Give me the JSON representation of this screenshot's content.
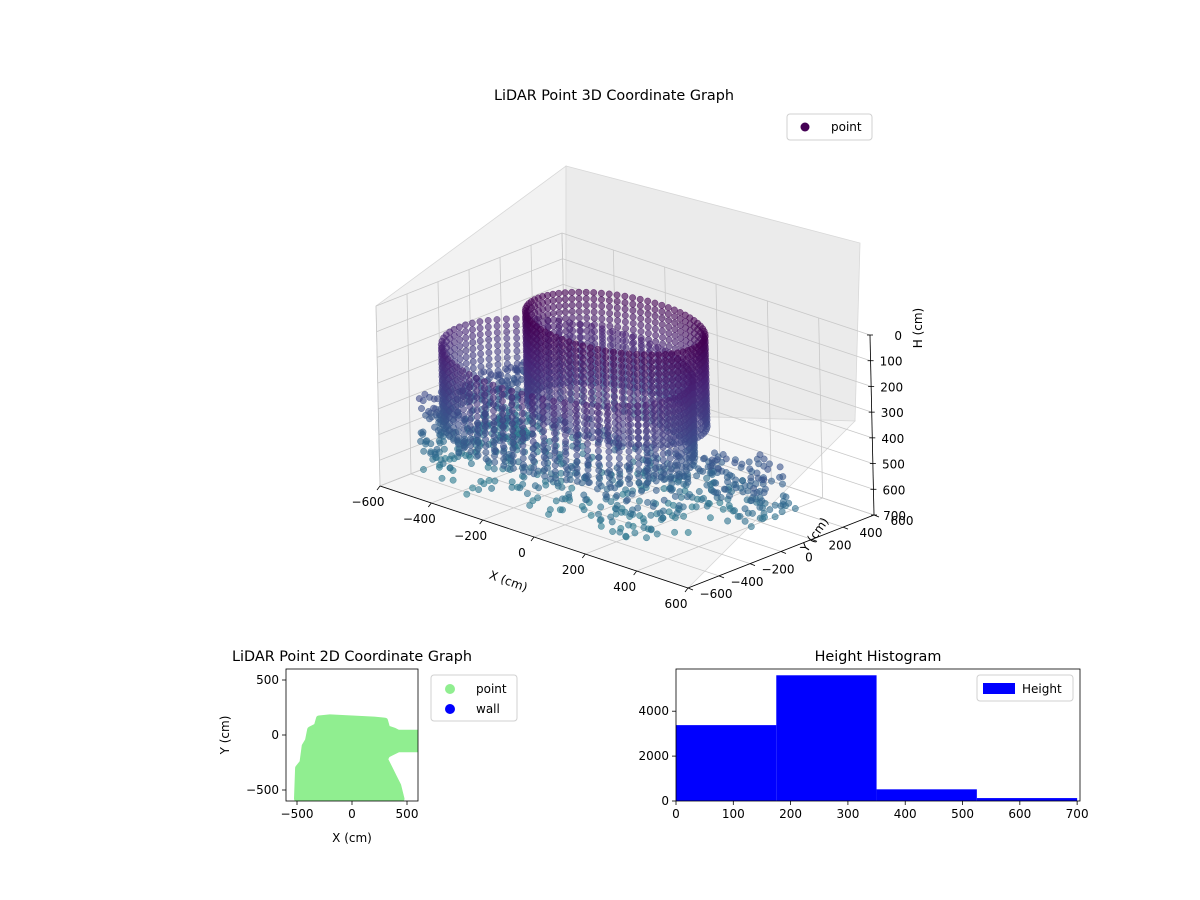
{
  "chart_data": [
    {
      "type": "scatter",
      "projection": "3d",
      "title": "LiDAR Point 3D Coordinate Graph",
      "xlabel": "X (cm)",
      "ylabel": "Y (cm)",
      "zlabel": "H (cm)",
      "xlim": [
        -600,
        600
      ],
      "ylim": [
        -600,
        600
      ],
      "zlim": [
        0,
        700
      ],
      "z_inverted": true,
      "xticks": [
        -600,
        -400,
        -200,
        0,
        200,
        400,
        600
      ],
      "yticks": [
        -600,
        -400,
        -200,
        0,
        200,
        400,
        600
      ],
      "zticks": [
        0,
        100,
        200,
        300,
        400,
        500,
        600,
        700
      ],
      "xtick_labels": [
        "−600",
        "−400",
        "−200",
        "0",
        "200",
        "400",
        "600"
      ],
      "ytick_labels": [
        "−600",
        "−400",
        "−200",
        "0",
        "200",
        "400",
        "600"
      ],
      "ztick_labels": [
        "0",
        "100",
        "200",
        "300",
        "400",
        "500",
        "600",
        "700"
      ],
      "grid": true,
      "colormap": "viridis",
      "legend": {
        "placement": "top-right",
        "entries": [
          {
            "label": "point",
            "color": "#440154"
          }
        ]
      },
      "series": [
        {
          "name": "point",
          "structures": [
            {
              "kind": "ring",
              "center": [
                0,
                -50
              ],
              "radius": 300,
              "z": [
                0,
                350
              ]
            },
            {
              "kind": "ring",
              "center": [
                -100,
                -200
              ],
              "radius": 420,
              "z": [
                150,
                450
              ]
            },
            {
              "kind": "wall",
              "x": [
                -520,
                -460
              ],
              "y": [
                -500,
                200
              ],
              "z": [
                350,
                650
              ]
            },
            {
              "kind": "corridor",
              "x": [
                250,
                600
              ],
              "y": [
                -150,
                150
              ],
              "z": [
                400,
                600
              ]
            },
            {
              "kind": "floor",
              "x": [
                -500,
                400
              ],
              "y": [
                -550,
                150
              ],
              "z": [
                450,
                650
              ]
            }
          ],
          "approx_point_count": 9700
        }
      ]
    },
    {
      "type": "scatter",
      "title": "LiDAR Point 2D Coordinate Graph",
      "xlabel": "X (cm)",
      "ylabel": "Y (cm)",
      "xlim": [
        -600,
        600
      ],
      "ylim": [
        -600,
        600
      ],
      "xticks": [
        -500,
        0,
        500
      ],
      "yticks": [
        -500,
        0,
        500
      ],
      "xtick_labels": [
        "−500",
        "0",
        "500"
      ],
      "ytick_labels": [
        "−500",
        "0",
        "500"
      ],
      "grid": false,
      "legend": {
        "placement": "outside-right",
        "entries": [
          {
            "label": "point",
            "color": "#90ee90"
          },
          {
            "label": "wall",
            "color": "#0000ff"
          }
        ]
      },
      "series": [
        {
          "name": "point",
          "color": "#90ee90",
          "outline": [
            [
              -500,
              -580
            ],
            [
              -490,
              -300
            ],
            [
              -450,
              -250
            ],
            [
              -430,
              -100
            ],
            [
              -400,
              -50
            ],
            [
              -380,
              50
            ],
            [
              -320,
              80
            ],
            [
              -300,
              150
            ],
            [
              -200,
              160
            ],
            [
              0,
              150
            ],
            [
              200,
              140
            ],
            [
              300,
              130
            ],
            [
              320,
              60
            ],
            [
              380,
              40
            ],
            [
              420,
              20
            ],
            [
              600,
              20
            ],
            [
              600,
              -130
            ],
            [
              420,
              -130
            ],
            [
              360,
              -160
            ],
            [
              320,
              -180
            ],
            [
              300,
              -220
            ],
            [
              340,
              -300
            ],
            [
              380,
              -380
            ],
            [
              420,
              -460
            ],
            [
              450,
              -580
            ]
          ]
        },
        {
          "name": "wall",
          "color": "#0000ff",
          "points": []
        }
      ]
    },
    {
      "type": "bar",
      "subtype": "histogram",
      "title": "Height Histogram",
      "xlabel": "",
      "ylabel": "",
      "xlim": [
        0,
        705
      ],
      "ylim": [
        0,
        5880
      ],
      "xticks": [
        0,
        100,
        200,
        300,
        400,
        500,
        600,
        700
      ],
      "yticks": [
        0,
        2000,
        4000
      ],
      "xtick_labels": [
        "0",
        "100",
        "200",
        "300",
        "400",
        "500",
        "600",
        "700"
      ],
      "ytick_labels": [
        "0",
        "2000",
        "4000"
      ],
      "bin_edges": [
        0,
        175,
        350,
        525,
        700
      ],
      "values": [
        3380,
        5600,
        520,
        130
      ],
      "color": "#0000ff",
      "legend": {
        "placement": "top-right",
        "entries": [
          {
            "label": "Height",
            "color": "#0000ff"
          }
        ]
      }
    }
  ]
}
